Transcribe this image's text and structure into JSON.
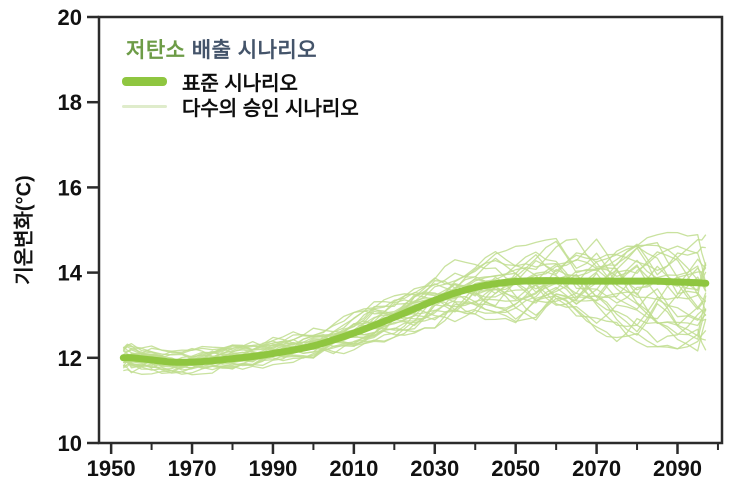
{
  "title": {
    "highlight": "저탄소",
    "rest": " 배출 시나리오",
    "highlight_color": "#6d9c47",
    "rest_color": "#44546a"
  },
  "legend": {
    "items": [
      {
        "label": "표준 시나리오",
        "swatch": "thick-line",
        "color": "#8fc640"
      },
      {
        "label": "다수의 승인 시나리오",
        "swatch": "thin-line",
        "color": "#dfeccb"
      }
    ]
  },
  "colors": {
    "median_line": "#8fc640",
    "ensemble_line": "#c0dd8e",
    "axis": "#2b2b2b",
    "tick_text": "#111111",
    "background": "#ffffff"
  },
  "chart_data": {
    "type": "line",
    "title": "저탄소 배출 시나리오",
    "xlabel": "",
    "ylabel": "기온변화(°C)",
    "xlim": [
      1947,
      2101
    ],
    "ylim": [
      10,
      20
    ],
    "xticks": [
      1950,
      1970,
      1990,
      2010,
      2030,
      2050,
      2070,
      2090
    ],
    "xticks_minor": [
      1960,
      1980,
      2000,
      2020,
      2040,
      2060,
      2080,
      2100
    ],
    "yticks": [
      10,
      12,
      14,
      16,
      18,
      20
    ],
    "grid": false,
    "legend_position": "top-left-inside",
    "x": [
      1953,
      1955,
      1960,
      1965,
      1970,
      1975,
      1980,
      1985,
      1990,
      1995,
      2000,
      2005,
      2010,
      2015,
      2020,
      2025,
      2030,
      2035,
      2040,
      2045,
      2050,
      2055,
      2060,
      2065,
      2070,
      2075,
      2080,
      2085,
      2090,
      2095,
      2097
    ],
    "series": [
      {
        "name": "표준 시나리오",
        "role": "median",
        "color": "#8fc640",
        "line_width": 7,
        "y": [
          12.0,
          12.0,
          11.95,
          11.9,
          11.9,
          11.93,
          11.98,
          12.03,
          12.1,
          12.18,
          12.28,
          12.42,
          12.58,
          12.76,
          12.95,
          13.15,
          13.35,
          13.52,
          13.65,
          13.74,
          13.79,
          13.81,
          13.81,
          13.8,
          13.8,
          13.8,
          13.8,
          13.8,
          13.78,
          13.76,
          13.75
        ]
      },
      {
        "name": "다수의 승인 시나리오",
        "role": "ensemble",
        "color": "#c0dd8e",
        "line_width": 1.3,
        "count": 28,
        "seed": 11,
        "envelope_lower": [
          11.7,
          11.65,
          11.62,
          11.55,
          11.6,
          11.65,
          11.7,
          11.75,
          11.85,
          11.9,
          12.0,
          12.1,
          12.2,
          12.35,
          12.5,
          12.6,
          12.72,
          12.82,
          12.88,
          12.9,
          12.85,
          12.8,
          12.7,
          12.6,
          12.5,
          12.42,
          12.35,
          12.3,
          12.25,
          12.2,
          12.2
        ],
        "envelope_upper": [
          12.3,
          12.35,
          12.3,
          12.25,
          12.25,
          12.3,
          12.35,
          12.42,
          12.5,
          12.6,
          12.72,
          12.88,
          13.05,
          13.3,
          13.55,
          13.82,
          14.05,
          14.28,
          14.42,
          14.52,
          14.6,
          14.68,
          14.78,
          14.8,
          14.85,
          14.88,
          14.9,
          14.85,
          14.9,
          14.85,
          14.85
        ]
      }
    ]
  }
}
